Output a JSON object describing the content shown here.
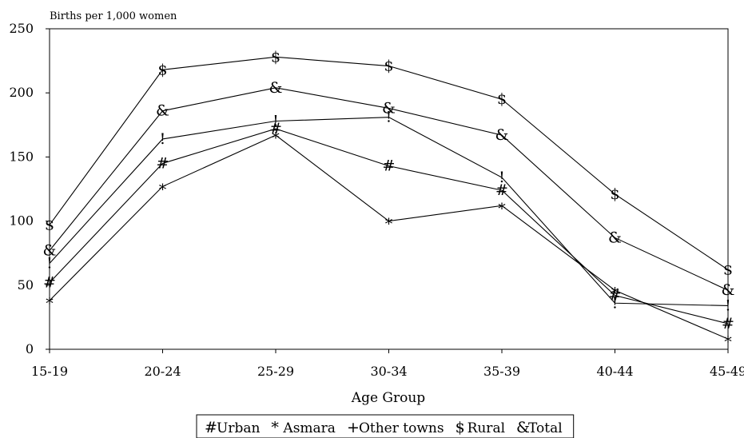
{
  "chart_data": {
    "type": "line",
    "ylabel": "Births per 1,000 women",
    "xlabel": "Age Group",
    "categories": [
      "15-19",
      "20-24",
      "25-29",
      "30-34",
      "35-39",
      "40-44",
      "45-49"
    ],
    "ylim": [
      0,
      250
    ],
    "yticks": [
      0,
      50,
      100,
      150,
      200,
      250
    ],
    "grid": false,
    "legend_position": "bottom",
    "series": [
      {
        "name": "Urban",
        "marker": "#",
        "values": [
          52,
          145,
          172,
          143,
          124,
          42,
          20
        ]
      },
      {
        "name": "Asmara",
        "marker": "*",
        "values": [
          38,
          127,
          167,
          100,
          112,
          46,
          8
        ]
      },
      {
        "name": "Other towns",
        "marker": "!",
        "values": [
          67,
          164,
          178,
          181,
          134,
          36,
          34
        ]
      },
      {
        "name": "Rural",
        "marker": "$",
        "values": [
          97,
          218,
          228,
          221,
          195,
          121,
          62
        ]
      },
      {
        "name": "Total",
        "marker": "&",
        "values": [
          77,
          186,
          204,
          188,
          167,
          87,
          46
        ]
      }
    ],
    "legend_markers": [
      "#",
      "*",
      "!",
      "$",
      "&"
    ],
    "legend_markers_display": [
      "#",
      "*",
      "+",
      "$",
      "&"
    ]
  }
}
